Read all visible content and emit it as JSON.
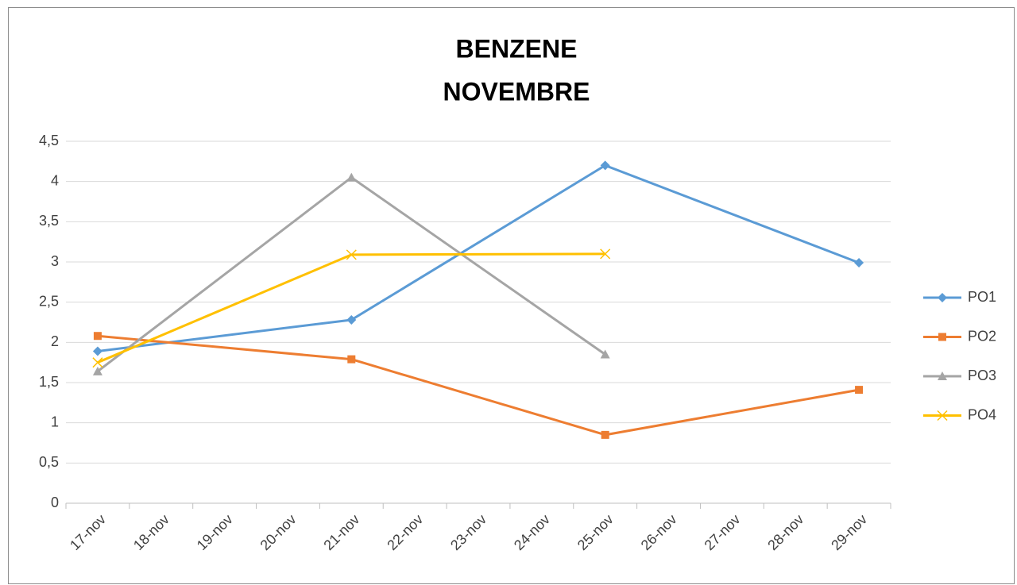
{
  "chart_data": {
    "type": "line",
    "title": [
      "BENZENE",
      "NOVEMBRE"
    ],
    "categories": [
      "17-nov",
      "18-nov",
      "19-nov",
      "20-nov",
      "21-nov",
      "22-nov",
      "23-nov",
      "24-nov",
      "25-nov",
      "26-nov",
      "27-nov",
      "28-nov",
      "29-nov"
    ],
    "series": [
      {
        "name": "PO1",
        "color": "#5b9bd5",
        "marker": "diamond",
        "x": [
          "17-nov",
          "21-nov",
          "25-nov",
          "29-nov"
        ],
        "values": [
          1.89,
          2.28,
          4.2,
          2.99
        ]
      },
      {
        "name": "PO2",
        "color": "#ed7d31",
        "marker": "square",
        "x": [
          "17-nov",
          "21-nov",
          "25-nov",
          "29-nov"
        ],
        "values": [
          2.08,
          1.79,
          0.85,
          1.41
        ]
      },
      {
        "name": "PO3",
        "color": "#a5a5a5",
        "marker": "triangle",
        "x": [
          "17-nov",
          "21-nov",
          "25-nov"
        ],
        "values": [
          1.64,
          4.05,
          1.85
        ]
      },
      {
        "name": "PO4",
        "color": "#ffc000",
        "marker": "x",
        "x": [
          "17-nov",
          "21-nov",
          "25-nov"
        ],
        "values": [
          1.75,
          3.09,
          3.1
        ]
      }
    ],
    "ylim": [
      0,
      4.5
    ],
    "yticks": [
      0,
      {
        "value": 0.5,
        "label": "0,5"
      },
      1,
      {
        "value": 1.5,
        "label": "1,5"
      },
      2,
      {
        "value": 2.5,
        "label": "2,5"
      },
      3,
      {
        "value": 3.5,
        "label": "3,5"
      },
      4,
      {
        "value": 4.5,
        "label": "4,5"
      }
    ],
    "grid": true,
    "legend": "right"
  }
}
